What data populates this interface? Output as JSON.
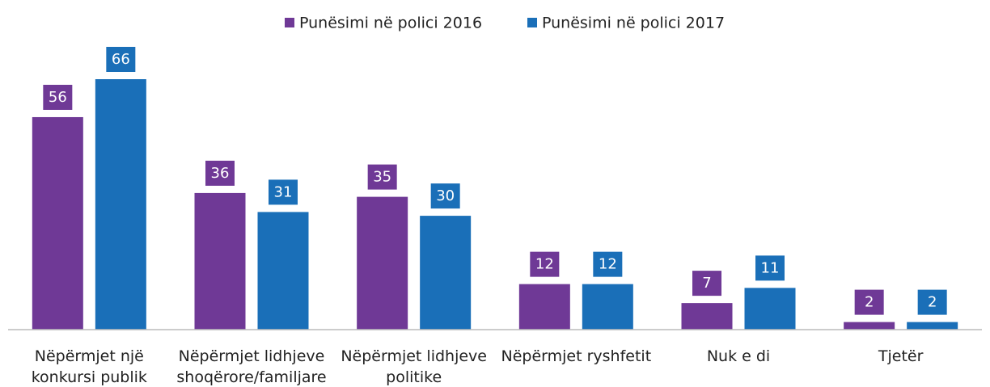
{
  "chart_data": {
    "type": "bar",
    "categories": [
      [
        "Nëpërmjet një",
        "konkursi publik"
      ],
      [
        "Nëpërmjet lidhjeve",
        "shoqërore/familjare"
      ],
      [
        "Nëpërmjet lidhjeve",
        "politike"
      ],
      [
        "Nëpërmjet ryshfetit"
      ],
      [
        "Nuk e di"
      ],
      [
        "Tjetër"
      ]
    ],
    "series": [
      {
        "name": "Punësimi në polici 2016",
        "color": "#6f3996",
        "values": [
          56,
          36,
          35,
          12,
          7,
          2
        ]
      },
      {
        "name": "Punësimi në polici 2017",
        "color": "#1a6fb8",
        "values": [
          66,
          31,
          30,
          12,
          11,
          2
        ]
      }
    ]
  }
}
